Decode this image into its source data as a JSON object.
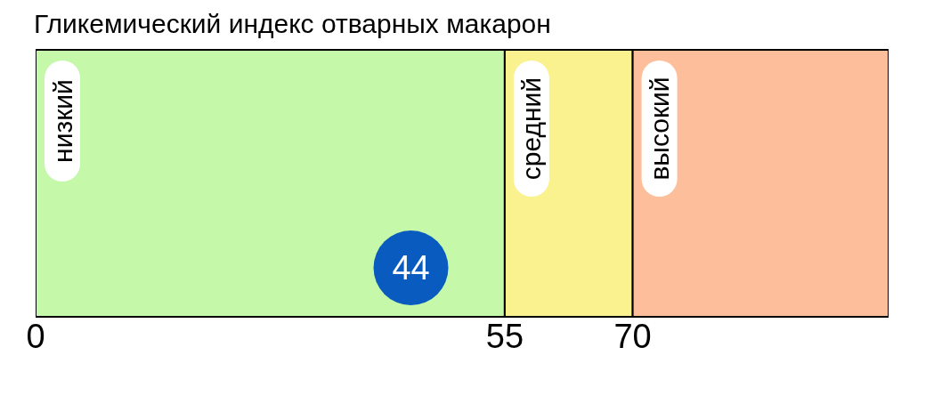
{
  "chart_data": {
    "type": "bar",
    "orientation": "horizontal",
    "stacked": true,
    "title": "Гликемический индекс отварных макарон",
    "categories": [
      null
    ],
    "series": [
      {
        "name": "низкий",
        "color": "#c5f8a8",
        "values": [
          55
        ]
      },
      {
        "name": "средний",
        "color": "#faf28e",
        "values": [
          15
        ]
      },
      {
        "name": "высокий",
        "color": "#fdbf9b",
        "values": [
          30
        ]
      }
    ],
    "annotations": [
      "44"
    ],
    "xlim": [
      0,
      100
    ],
    "xticks": [
      0,
      55,
      70
    ]
  }
}
